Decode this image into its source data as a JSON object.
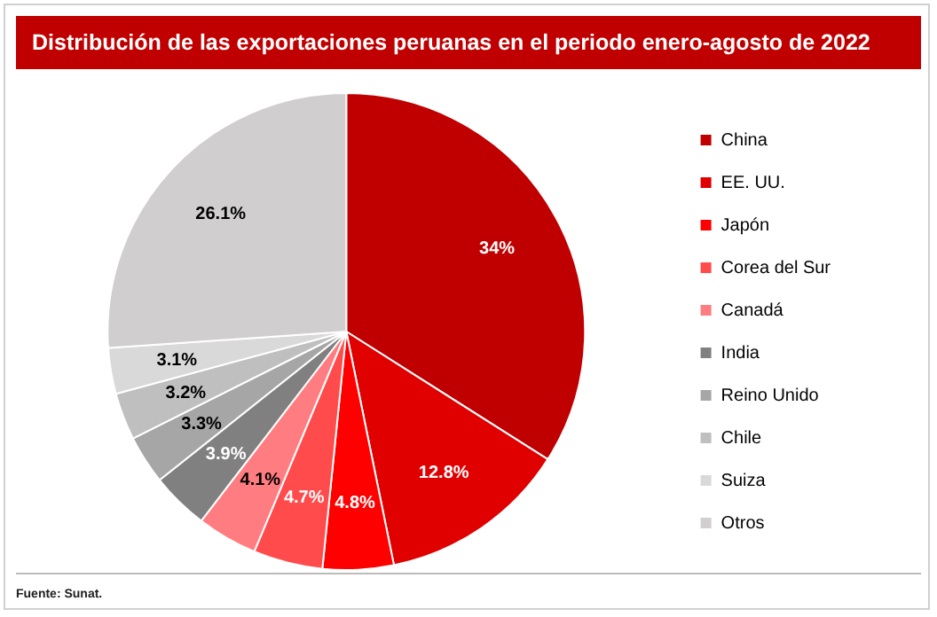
{
  "chart_data": {
    "type": "pie",
    "title": "Distribución de las exportaciones peruanas en el periodo enero-agosto de 2022",
    "categories": [
      "China",
      "EE. UU.",
      "Japón",
      "Corea del Sur",
      "Canadá",
      "India",
      "Reino Unido",
      "Chile",
      "Suiza",
      "Otros"
    ],
    "values": [
      34,
      12.8,
      4.8,
      4.7,
      4.1,
      3.9,
      3.3,
      3.2,
      3.1,
      26.1
    ],
    "colors": [
      "#c00000",
      "#e00000",
      "#ff0000",
      "#ff4b4b",
      "#ff7c80",
      "#808080",
      "#a6a6a6",
      "#bfbfbf",
      "#d9d9d9",
      "#d0cece"
    ],
    "value_labels": [
      "34%",
      "12.8%",
      "4.8%",
      "4.7%",
      "4.1%",
      "3.9%",
      "3.3%",
      "3.2%",
      "3.1%",
      "26.1%"
    ],
    "legend": "right",
    "annotations": [
      "Fuente: Sunat."
    ]
  }
}
